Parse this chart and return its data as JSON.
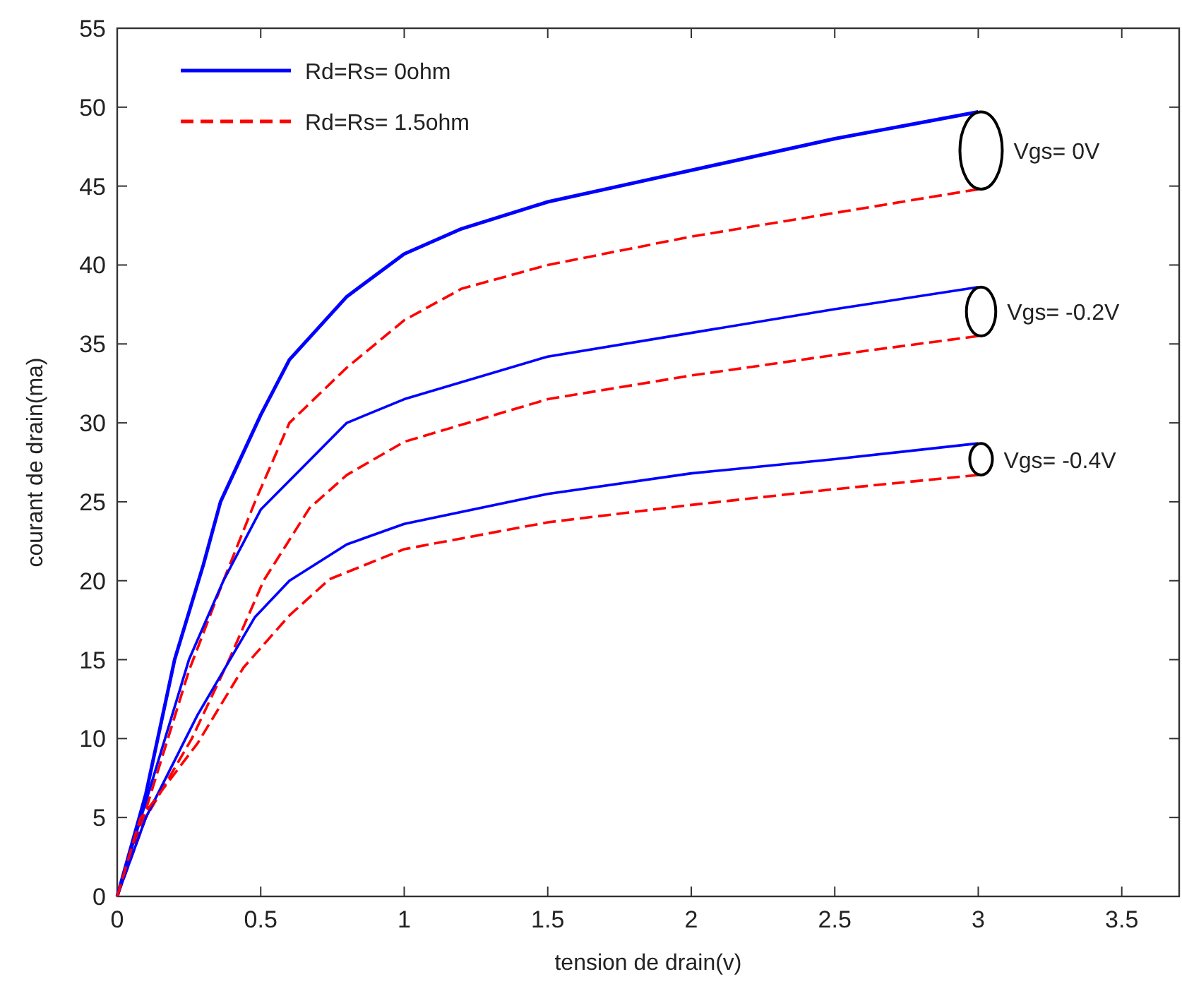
{
  "chart_data": {
    "type": "line",
    "xlabel": "tension de drain(v)",
    "ylabel": "courant de drain(ma)",
    "xlim": [
      0,
      3.7
    ],
    "xticks": [
      0,
      0.5,
      1,
      1.5,
      2,
      2.5,
      3,
      3.5
    ],
    "ylim": [
      0,
      55
    ],
    "yticks": [
      0,
      5,
      10,
      15,
      20,
      25,
      30,
      35,
      40,
      45,
      50,
      55
    ],
    "grid": false,
    "legend": "top left",
    "marker": "none",
    "series": [
      {
        "name": "Rd=Rs= 0ohm",
        "color": "#0000ff",
        "line_style": "solid",
        "x": [
          0,
          0.1,
          0.2,
          0.3,
          0.36,
          0.5,
          0.6,
          0.8,
          1,
          1.2,
          1.5,
          2,
          2.5,
          3
        ],
        "values": [
          0,
          6.5,
          15,
          21,
          25,
          30.5,
          34,
          38,
          40.7,
          42.3,
          44,
          46,
          48,
          49.7
        ]
      },
      {
        "name": "Rd=Rs= 1.5ohm",
        "color": "#ff0000",
        "line_style": "dashed",
        "x": [
          0,
          0.1,
          0.25,
          0.37,
          0.48,
          0.6,
          0.8,
          1,
          1.2,
          1.5,
          2,
          2.5,
          3
        ],
        "values": [
          0,
          5.5,
          14.3,
          20,
          25,
          30,
          33.5,
          36.5,
          38.5,
          40,
          41.8,
          43.3,
          44.8
        ]
      },
      {
        "color": "#0000ff",
        "line_style": "solid",
        "x": [
          0,
          0.1,
          0.25,
          0.37,
          0.5,
          0.8,
          1,
          1.5,
          2,
          2.5,
          3
        ],
        "values": [
          0,
          6,
          15,
          20,
          24.5,
          30,
          31.5,
          34.2,
          35.7,
          37.2,
          38.6
        ]
      },
      {
        "color": "#ff0000",
        "line_style": "dashed",
        "x": [
          0,
          0.1,
          0.26,
          0.39,
          0.51,
          0.67,
          0.8,
          1,
          1.5,
          2,
          2.5,
          3
        ],
        "values": [
          0,
          5,
          10,
          15,
          20,
          24.6,
          26.7,
          28.8,
          31.5,
          33,
          34.3,
          35.5
        ]
      },
      {
        "color": "#0000ff",
        "line_style": "solid",
        "x": [
          0,
          0.1,
          0.28,
          0.48,
          0.6,
          0.8,
          1,
          1.5,
          2,
          2.5,
          3
        ],
        "values": [
          0,
          5,
          11.5,
          17.7,
          20,
          22.3,
          23.6,
          25.5,
          26.8,
          27.7,
          28.7
        ]
      },
      {
        "color": "#ff0000",
        "line_style": "dashed",
        "x": [
          0,
          0.08,
          0.28,
          0.44,
          0.6,
          0.74,
          1,
          1.5,
          2,
          2.5,
          3
        ],
        "values": [
          0,
          4.9,
          9.7,
          14.5,
          17.8,
          20.1,
          22,
          23.7,
          24.8,
          25.8,
          26.7
        ]
      }
    ],
    "annotations": [
      "Vgs= 0V",
      "Vgs= -0.2V",
      "Vgs= -0.4V"
    ]
  }
}
